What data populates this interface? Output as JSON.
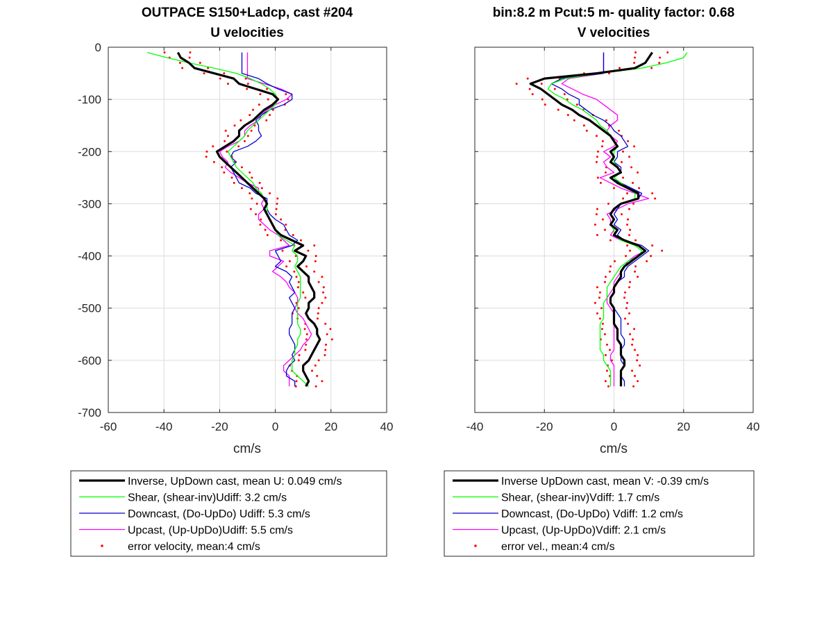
{
  "chart_data": [
    {
      "type": "line",
      "title": [
        "OUTPACE S150+Ladcp, cast #204",
        "U velocities"
      ],
      "xlabel": "cm/s",
      "ylabel": "",
      "xlim": [
        -60,
        40
      ],
      "ylim": [
        -700,
        0
      ],
      "xticks": [
        "-60",
        "-40",
        "-20",
        "0",
        "20",
        "40"
      ],
      "yticks": [
        "0",
        "-100",
        "-200",
        "-300",
        "-400",
        "-500",
        "-600",
        "-700"
      ],
      "grid": true,
      "legend_position": "below",
      "colors": {
        "inverse": "#000000",
        "shear": "#00ff00",
        "down": "#0000cc",
        "up": "#ff00ff",
        "error": "#ff0000"
      },
      "legend": [
        "Inverse, UpDown cast, mean U:  0.049 cm/s",
        "Shear, (shear-inv)Udiff:  3.2 cm/s",
        "Downcast, (Do-UpDo) Udiff:  5.3 cm/s",
        "Upcast, (Up-UpDo)Udiff:  5.5 cm/s",
        "error velocity, mean:4 cm/s"
      ],
      "depth": [
        -10,
        -20,
        -30,
        -40,
        -50,
        -60,
        -70,
        -80,
        -90,
        -100,
        -110,
        -120,
        -130,
        -140,
        -150,
        -160,
        -170,
        -180,
        -190,
        -200,
        -210,
        -220,
        -230,
        -240,
        -250,
        -260,
        -270,
        -280,
        -290,
        -300,
        -310,
        -320,
        -330,
        -340,
        -350,
        -360,
        -370,
        -380,
        -390,
        -400,
        -410,
        -420,
        -430,
        -440,
        -450,
        -460,
        -470,
        -480,
        -490,
        -500,
        -510,
        -520,
        -530,
        -540,
        -550,
        -560,
        -570,
        -580,
        -590,
        -600,
        -610,
        -620,
        -630,
        -640,
        -650
      ],
      "series": [
        {
          "key": "inverse",
          "values": [
            -35,
            -34,
            -31,
            -29,
            -22,
            -15,
            -13,
            -7,
            -1,
            1,
            -1,
            -4,
            -6,
            -8,
            -11,
            -13,
            -13,
            -15,
            -18,
            -21,
            -20,
            -18,
            -16,
            -14,
            -12,
            -10,
            -8,
            -6,
            -4,
            -3,
            -4,
            -3,
            -2,
            -1,
            0,
            2,
            6,
            10,
            7,
            11,
            10,
            8,
            10,
            12,
            12,
            13,
            14,
            14,
            12,
            12,
            11,
            12,
            14,
            15,
            15,
            16,
            15,
            14,
            13,
            12,
            10,
            10,
            11,
            12,
            11
          ]
        },
        {
          "key": "shear",
          "values": [
            -46,
            -39,
            -31,
            -22,
            -14,
            -9,
            -5,
            -2,
            0,
            1,
            0,
            -2,
            -4,
            -6,
            -8,
            -10,
            -11,
            -13,
            -15,
            -17,
            -16,
            -15,
            -14,
            -12,
            -10,
            -8,
            -7,
            -5,
            -4,
            -3,
            -3,
            -3,
            -2,
            -1,
            0,
            1,
            4,
            7,
            6,
            8,
            8,
            7,
            8,
            9,
            9,
            9,
            9,
            9,
            8,
            8,
            8,
            8,
            8,
            9,
            9,
            8,
            8,
            7,
            7,
            6,
            6,
            6,
            8,
            10,
            12
          ]
        },
        {
          "key": "down",
          "values": [
            -12,
            -12,
            -12,
            -12,
            -12,
            -6,
            -3,
            1,
            6,
            6,
            3,
            -2,
            -5,
            -7,
            -6,
            -6,
            -5,
            -7,
            -10,
            -15,
            -16,
            -14,
            -16,
            -15,
            -14,
            -13,
            -9,
            -7,
            -3,
            -3,
            -3,
            -2,
            0,
            3,
            4,
            5,
            8,
            6,
            0,
            1,
            2,
            0,
            4,
            6,
            5,
            6,
            7,
            5,
            6,
            7,
            6,
            6,
            6,
            5,
            5,
            6,
            7,
            7,
            6,
            7,
            5,
            4,
            4,
            7,
            7
          ]
        },
        {
          "key": "up",
          "values": [
            -10,
            -10,
            -10,
            -10,
            -10,
            -10,
            -4,
            2,
            6,
            4,
            0,
            -3,
            -5,
            -6,
            -9,
            -11,
            -11,
            -13,
            -17,
            -20,
            -19,
            -17,
            -18,
            -16,
            -13,
            -10,
            -6,
            -6,
            -4,
            -5,
            -4,
            -6,
            -6,
            -4,
            -2,
            1,
            3,
            5,
            -2,
            -2,
            3,
            1,
            -1,
            2,
            4,
            5,
            7,
            8,
            8,
            7,
            8,
            10,
            11,
            12,
            13,
            12,
            10,
            9,
            7,
            5,
            3,
            3,
            5,
            5,
            5
          ]
        },
        {
          "key": "error",
          "values": [
            -35,
            -34,
            -31,
            -29,
            -22,
            -15,
            -13,
            -7,
            -1,
            1,
            -1,
            -4,
            -6,
            -8,
            -11,
            -13,
            -13,
            -15,
            -18,
            -21,
            -20,
            -18,
            -16,
            -14,
            -12,
            -10,
            -8,
            -6,
            -4,
            -3,
            -4,
            -3,
            -2,
            -1,
            0,
            2,
            6,
            10,
            7,
            11,
            10,
            8,
            10,
            12,
            12,
            13,
            14,
            14,
            12,
            12,
            11,
            12,
            14,
            15,
            15,
            16,
            15,
            14,
            13,
            12,
            10,
            10,
            11,
            12,
            11
          ],
          "error": 4
        }
      ]
    },
    {
      "type": "line",
      "title": [
        "bin:8.2 m  Pcut:5 m- quality factor:  0.68",
        "V velocities"
      ],
      "xlabel": "cm/s",
      "ylabel": "",
      "xlim": [
        -40,
        40
      ],
      "ylim": [
        -700,
        0
      ],
      "xticks": [
        "-40",
        "-20",
        "0",
        "20",
        "40"
      ],
      "yticks": [],
      "grid": true,
      "legend_position": "below",
      "colors": {
        "inverse": "#000000",
        "shear": "#00ff00",
        "down": "#0000cc",
        "up": "#ff00ff",
        "error": "#ff0000"
      },
      "legend": [
        "Inverse UpDown cast, mean V:  -0.39 cm/s",
        "Shear, (shear-inv)Vdiff:  1.7 cm/s",
        "Downcast, (Do-UpDo) Vdiff:  1.2 cm/s",
        "Upcast, (Up-UpDo)Vdiff:  2.1 cm/s",
        "error vel., mean:4 cm/s"
      ],
      "depth": [
        -10,
        -20,
        -30,
        -40,
        -50,
        -60,
        -70,
        -80,
        -90,
        -100,
        -110,
        -120,
        -130,
        -140,
        -150,
        -160,
        -170,
        -180,
        -190,
        -200,
        -210,
        -220,
        -230,
        -240,
        -250,
        -260,
        -270,
        -280,
        -290,
        -300,
        -310,
        -320,
        -330,
        -340,
        -350,
        -360,
        -370,
        -380,
        -390,
        -400,
        -410,
        -420,
        -430,
        -440,
        -450,
        -460,
        -470,
        -480,
        -490,
        -500,
        -510,
        -520,
        -530,
        -540,
        -550,
        -560,
        -570,
        -580,
        -590,
        -600,
        -610,
        -620,
        -630,
        -640,
        -650
      ],
      "series": [
        {
          "key": "inverse",
          "values": [
            11,
            10,
            9,
            6,
            -5,
            -20,
            -24,
            -21,
            -19,
            -17,
            -15,
            -12,
            -10,
            -7,
            -5,
            -3,
            -1,
            0,
            1,
            -1,
            0,
            -1,
            1,
            2,
            -1,
            1,
            4,
            7,
            7,
            2,
            0,
            -1,
            0,
            -1,
            1,
            0,
            3,
            7,
            9,
            7,
            5,
            3,
            2,
            2,
            1,
            0,
            0,
            -1,
            -1,
            0,
            0,
            0,
            0,
            1,
            1,
            1,
            2,
            2,
            2,
            3,
            3,
            2,
            2,
            2,
            2
          ]
        },
        {
          "key": "shear",
          "values": [
            21,
            20,
            15,
            8,
            -4,
            -14,
            -18,
            -19,
            -17,
            -14,
            -12,
            -9,
            -7,
            -5,
            -4,
            -2,
            -1,
            0,
            1,
            0,
            0,
            0,
            1,
            2,
            0,
            2,
            4,
            6,
            6,
            2,
            0,
            -1,
            0,
            -1,
            0,
            0,
            2,
            6,
            8,
            7,
            4,
            2,
            1,
            0,
            -1,
            -2,
            -2,
            -2,
            -3,
            -3,
            -3,
            -3,
            -4,
            -4,
            -4,
            -4,
            -4,
            -4,
            -3,
            -3,
            -2,
            -1,
            -1,
            -1,
            -1
          ]
        },
        {
          "key": "down",
          "values": [
            -3,
            -3,
            -3,
            -3,
            -3,
            -15,
            -18,
            -15,
            -13,
            -10,
            -10,
            -8,
            -6,
            -3,
            -1,
            0,
            2,
            3,
            4,
            1,
            1,
            0,
            2,
            2,
            -1,
            2,
            5,
            8,
            7,
            2,
            1,
            0,
            1,
            0,
            2,
            1,
            3,
            8,
            10,
            8,
            6,
            4,
            3,
            3,
            1,
            0,
            0,
            -1,
            -1,
            0,
            1,
            2,
            2,
            2,
            2,
            3,
            3,
            2,
            2,
            2,
            3,
            2,
            2,
            3,
            3
          ]
        },
        {
          "key": "up",
          "values": [
            -3,
            -3,
            -3,
            -3,
            -3,
            -13,
            -15,
            -12,
            -9,
            -5,
            -3,
            -1,
            1,
            1,
            -1,
            -2,
            -1,
            1,
            0,
            -3,
            -1,
            -3,
            -2,
            0,
            -4,
            -1,
            2,
            6,
            10,
            4,
            1,
            -2,
            -1,
            -1,
            0,
            -1,
            2,
            7,
            9,
            6,
            4,
            3,
            2,
            1,
            0,
            0,
            -1,
            -2,
            -2,
            -1,
            0,
            0,
            0,
            0,
            0,
            0,
            0,
            0,
            -1,
            -1,
            0,
            0,
            0,
            0,
            0
          ]
        },
        {
          "key": "error",
          "values": [
            11,
            10,
            9,
            6,
            -5,
            -20,
            -24,
            -21,
            -19,
            -17,
            -15,
            -12,
            -10,
            -7,
            -5,
            -3,
            -1,
            0,
            1,
            -1,
            0,
            -1,
            1,
            2,
            -1,
            1,
            4,
            7,
            7,
            2,
            0,
            -1,
            0,
            -1,
            1,
            0,
            3,
            7,
            9,
            7,
            5,
            3,
            2,
            2,
            1,
            0,
            0,
            -1,
            -1,
            0,
            0,
            0,
            0,
            1,
            1,
            1,
            2,
            2,
            2,
            3,
            3,
            2,
            2,
            2,
            2
          ],
          "error": 4
        }
      ]
    }
  ]
}
